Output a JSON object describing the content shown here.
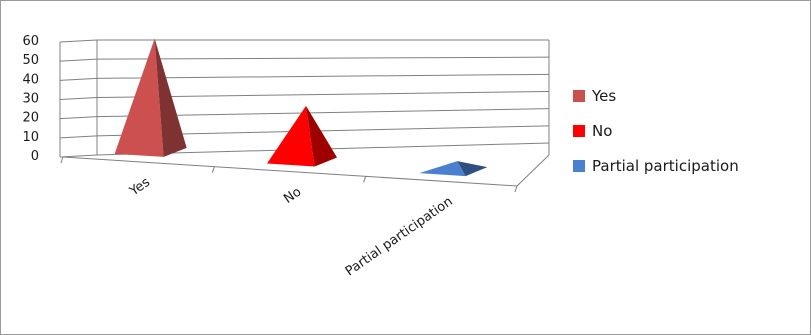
{
  "chart_data": {
    "type": "bar",
    "style": "3d-pyramid",
    "categories": [
      "Yes",
      "No",
      "Partial participation"
    ],
    "values": [
      56,
      28,
      5
    ],
    "colors": [
      "#cc5050",
      "#ff0000",
      "#4b7fcf"
    ],
    "ylim": [
      0,
      60
    ],
    "yticks": [
      "60",
      "50",
      "40",
      "30",
      "20",
      "10",
      "0"
    ],
    "grid": true,
    "legend": {
      "position": "right",
      "items": [
        {
          "label": "Yes",
          "color": "#cc5050"
        },
        {
          "label": "No",
          "color": "#ff0000"
        },
        {
          "label": "Partial participation",
          "color": "#4b7fcf"
        }
      ]
    }
  }
}
